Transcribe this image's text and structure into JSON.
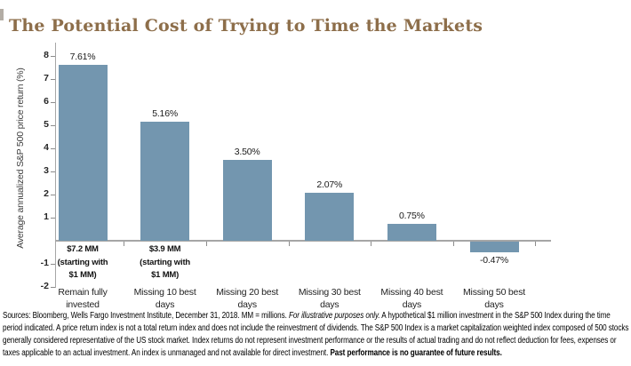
{
  "page": {
    "title": "The Potential Cost of Trying to Time the Markets"
  },
  "chart_data": {
    "type": "bar",
    "title": "The Potential Cost of Trying to Time the Markets",
    "ylabel": "Average annualized S&P 500 price return (%)",
    "xlabel": "",
    "categories": [
      "Remain fully invested",
      "Missing 10 best days",
      "Missing 20 best days",
      "Missing 30 best days",
      "Missing 40 best days",
      "Missing 50 best days"
    ],
    "values": [
      7.61,
      5.16,
      3.5,
      2.07,
      0.75,
      -0.47
    ],
    "value_labels": [
      "7.61%",
      "5.16%",
      "3.50%",
      "2.07%",
      "0.75%",
      "-0.47%"
    ],
    "bar_annotations": [
      {
        "index": 0,
        "lines": [
          "$7.2 MM",
          "(starting with",
          "$1 MM)"
        ]
      },
      {
        "index": 1,
        "lines": [
          "$3.9 MM",
          "(starting with",
          "$1 MM)"
        ]
      }
    ],
    "yticks": [
      8,
      7,
      6,
      5,
      4,
      3,
      2,
      1,
      -1,
      -2
    ],
    "ylim": [
      -2,
      8.5
    ],
    "grid": false,
    "legend": false,
    "bar_color": "#7396af",
    "axis_color": "#a6a6a6"
  },
  "footnote": {
    "seg1": "Sources: Bloomberg, Wells Fargo Investment Institute, December 31, 2018. MM = millions. ",
    "seg2_italic": "For illustrative purposes only.",
    "seg3": "  A hypothetical $1 million investment in the S&P 500 Index during the time period indicated.  A price return index is not a total return index and does not include the reinvestment of dividends.  The S&P 500 Index is a market capitalization weighted index composed of 500 stocks generally considered representative of the US stock market.  Index returns do not represent investment performance or the results of actual trading and do not reflect deduction for fees, expenses or taxes applicable to an actual investment.  An index is unmanaged and not available for direct investment.  ",
    "seg4_bold": "Past performance is no guarantee of future results."
  }
}
